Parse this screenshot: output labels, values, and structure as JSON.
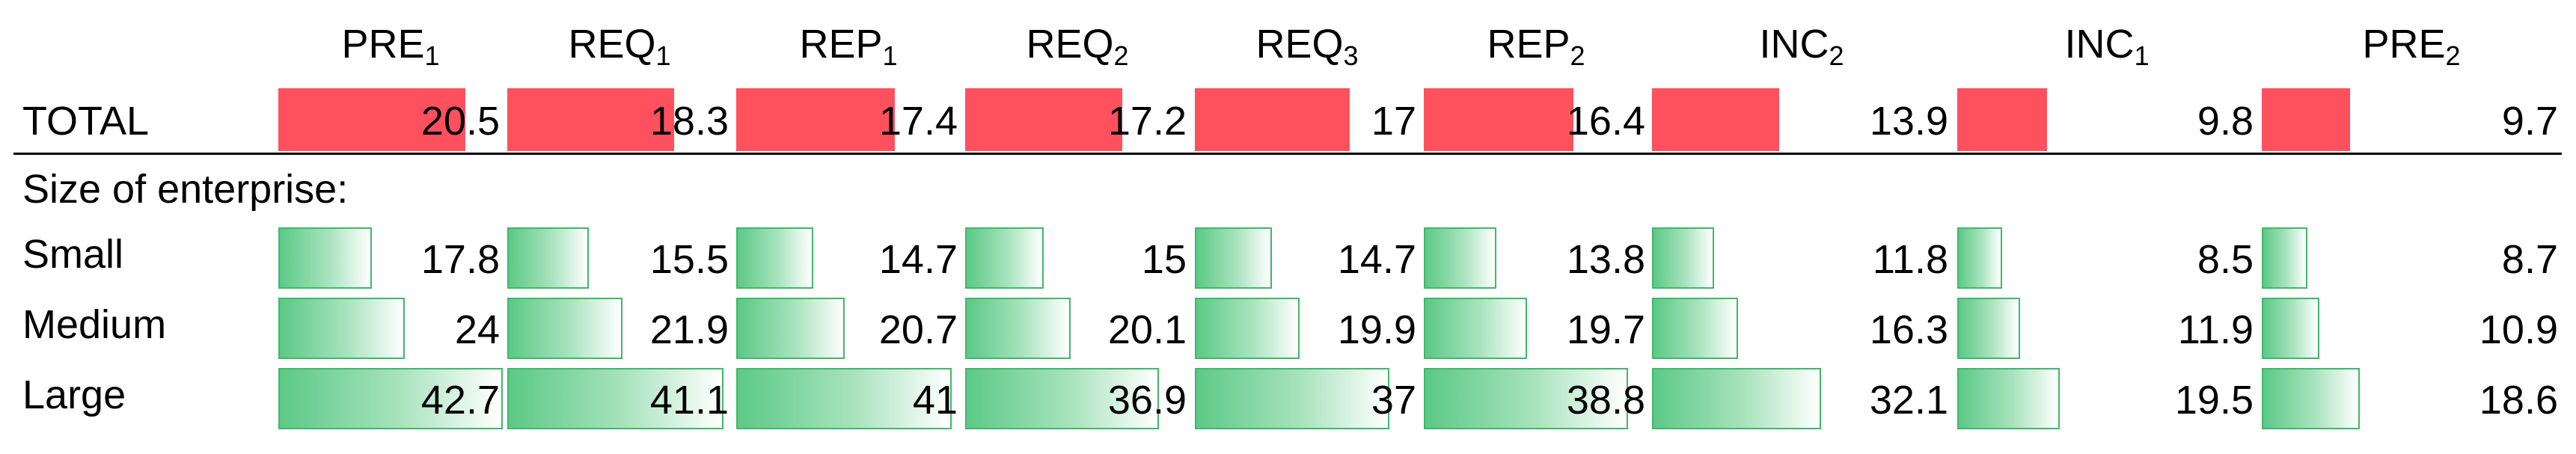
{
  "chart_data": {
    "type": "table",
    "columns": [
      {
        "base": "PRE",
        "sub": "1"
      },
      {
        "base": "REQ",
        "sub": "1"
      },
      {
        "base": "REP",
        "sub": "1"
      },
      {
        "base": "REQ",
        "sub": "2"
      },
      {
        "base": "REQ",
        "sub": "3"
      },
      {
        "base": "REP",
        "sub": "2"
      },
      {
        "base": "INC",
        "sub": "2"
      },
      {
        "base": "INC",
        "sub": "1"
      },
      {
        "base": "PRE",
        "sub": "2"
      }
    ],
    "total": {
      "label": "TOTAL",
      "values": [
        20.5,
        18.3,
        17.4,
        17.2,
        17,
        16.4,
        13.9,
        9.8,
        9.7
      ],
      "display": [
        "20.5",
        "18.3",
        "17.4",
        "17.2",
        "17",
        "16.4",
        "13.9",
        "9.8",
        "9.7"
      ]
    },
    "group_label": "Size of enterprise:",
    "rows": [
      {
        "label": "Small",
        "values": [
          17.8,
          15.5,
          14.7,
          15,
          14.7,
          13.8,
          11.8,
          8.5,
          8.7
        ],
        "display": [
          "17.8",
          "15.5",
          "14.7",
          "15",
          "14.7",
          "13.8",
          "11.8",
          "8.5",
          "8.7"
        ]
      },
      {
        "label": "Medium",
        "values": [
          24,
          21.9,
          20.7,
          20.1,
          19.9,
          19.7,
          16.3,
          11.9,
          10.9
        ],
        "display": [
          "24",
          "21.9",
          "20.7",
          "20.1",
          "19.9",
          "19.7",
          "16.3",
          "11.9",
          "10.9"
        ]
      },
      {
        "label": "Large",
        "values": [
          42.7,
          41.1,
          41,
          36.9,
          37,
          38.8,
          32.1,
          19.5,
          18.6
        ],
        "display": [
          "42.7",
          "41.1",
          "41",
          "36.9",
          "37",
          "38.8",
          "32.1",
          "19.5",
          "18.6"
        ]
      }
    ],
    "colors": {
      "total_bar": "#ff505e",
      "row_bar": "#5cc986",
      "row_bar_border": "#3fb86a"
    }
  }
}
